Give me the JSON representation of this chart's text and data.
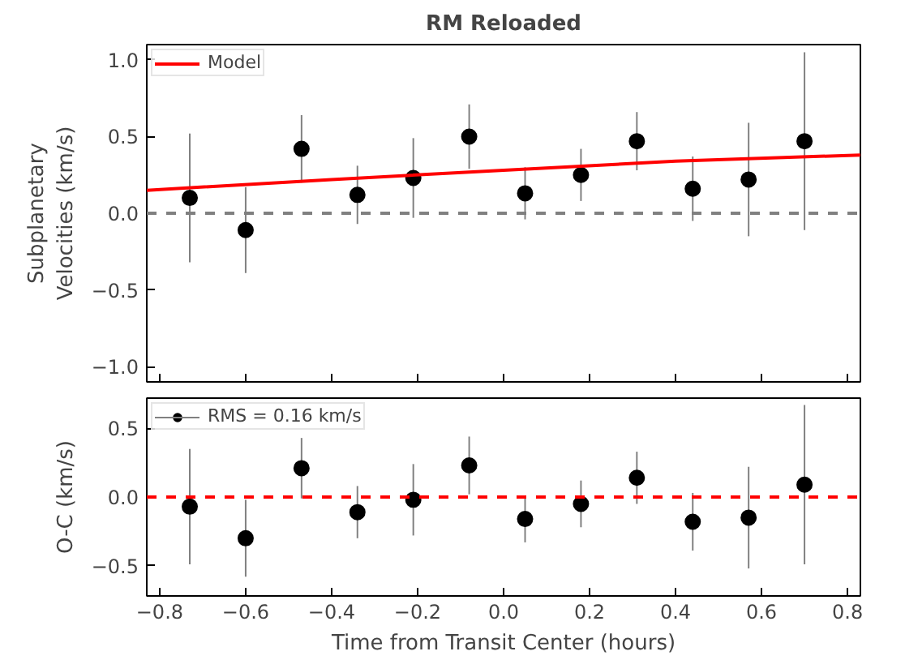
{
  "chart_data": [
    {
      "type": "scatter",
      "title": "RM Reloaded",
      "ylabel": "Subplanetary\nVelocities (km/s)",
      "xlim": [
        -0.83,
        0.83
      ],
      "xticks": [
        -0.8,
        -0.6,
        -0.4,
        -0.2,
        0.0,
        0.2,
        0.4,
        0.6,
        0.8
      ],
      "ylim": [
        -1.1,
        1.1
      ],
      "yticks": [
        {
          "value": -1.0,
          "label": "−1.0"
        },
        {
          "value": -0.5,
          "label": "−0.5"
        },
        {
          "value": 0.0,
          "label": "0.0"
        },
        {
          "value": 0.5,
          "label": "0.5"
        },
        {
          "value": 1.0,
          "label": "1.0"
        }
      ],
      "tick_labels": "y",
      "legend": "top left",
      "series": [
        {
          "marker": "circle",
          "color": "#000000",
          "x": [
            -0.73,
            -0.6,
            -0.47,
            -0.34,
            -0.21,
            -0.08,
            0.05,
            0.18,
            0.31,
            0.44,
            0.57,
            0.7
          ],
          "values": [
            0.1,
            -0.11,
            0.42,
            0.12,
            0.23,
            0.5,
            0.13,
            0.25,
            0.47,
            0.16,
            0.22,
            0.47
          ],
          "errors": [
            0.42,
            0.28,
            0.22,
            0.19,
            0.26,
            0.21,
            0.17,
            0.17,
            0.19,
            0.21,
            0.37,
            0.58
          ]
        },
        {
          "type": "line",
          "name": "Model",
          "color": "#ff0000",
          "x": [
            -0.83,
            -0.4,
            0.0,
            0.4,
            0.83
          ],
          "values": [
            0.15,
            0.22,
            0.28,
            0.34,
            0.38
          ]
        }
      ],
      "ref_lines": [
        {
          "axis": "y",
          "value": 0.0,
          "color": "#808080",
          "line_style": "dashed"
        }
      ]
    },
    {
      "type": "scatter",
      "xlabel": "Time from Transit Center (hours)",
      "ylabel": "O-C (km/s)",
      "xlim": [
        -0.83,
        0.83
      ],
      "xticks": [
        {
          "value": -0.8,
          "label": "−0.8"
        },
        {
          "value": -0.6,
          "label": "−0.6"
        },
        {
          "value": -0.4,
          "label": "−0.4"
        },
        {
          "value": -0.2,
          "label": "−0.2"
        },
        {
          "value": 0.0,
          "label": "0.0"
        },
        {
          "value": 0.2,
          "label": "0.2"
        },
        {
          "value": 0.4,
          "label": "0.4"
        },
        {
          "value": 0.6,
          "label": "0.6"
        },
        {
          "value": 0.8,
          "label": "0.8"
        }
      ],
      "ylim": [
        -0.72,
        0.72
      ],
      "yticks": [
        {
          "value": -0.5,
          "label": "−0.5"
        },
        {
          "value": 0.0,
          "label": "0.0"
        },
        {
          "value": 0.5,
          "label": "0.5"
        }
      ],
      "legend": "top left",
      "series": [
        {
          "marker": "circle",
          "name": "RMS = 0.16 km/s",
          "color": "#000000",
          "x": [
            -0.73,
            -0.6,
            -0.47,
            -0.34,
            -0.21,
            -0.08,
            0.05,
            0.18,
            0.31,
            0.44,
            0.57,
            0.7
          ],
          "values": [
            -0.07,
            -0.3,
            0.21,
            -0.11,
            -0.02,
            0.23,
            -0.16,
            -0.05,
            0.14,
            -0.18,
            -0.15,
            0.09
          ],
          "errors": [
            0.42,
            0.28,
            0.22,
            0.19,
            0.26,
            0.21,
            0.17,
            0.17,
            0.19,
            0.21,
            0.37,
            0.58
          ]
        }
      ],
      "ref_lines": [
        {
          "axis": "y",
          "value": 0.0,
          "color": "#ff0000",
          "line_style": "dashed"
        }
      ]
    }
  ]
}
